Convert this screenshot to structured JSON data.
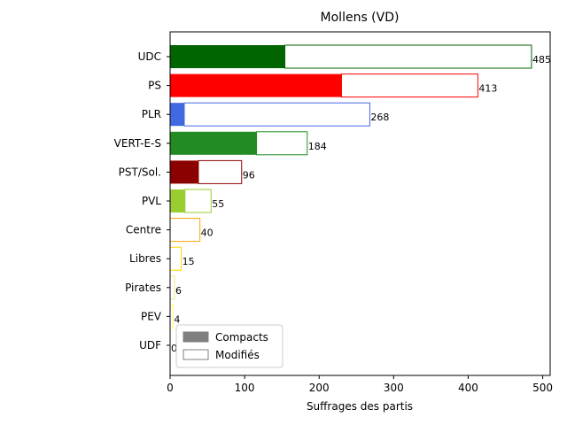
{
  "chart_data": {
    "type": "bar",
    "orientation": "horizontal",
    "title": "Mollens (VD)",
    "xlabel": "Suffrages des partis",
    "ylabel": "",
    "xlim": [
      0,
      510
    ],
    "xticks": [
      0,
      100,
      200,
      300,
      400,
      500
    ],
    "grid": false,
    "legend_position": "lower-left",
    "legend": [
      {
        "label": "Compacts",
        "style": "filled",
        "color": "#808080"
      },
      {
        "label": "Modifiés",
        "style": "outline",
        "color": "#808080"
      }
    ],
    "categories": [
      "UDC",
      "PS",
      "PLR",
      "VERT-E-S",
      "PST/Sol.",
      "PVL",
      "Centre",
      "Libres",
      "Pirates",
      "PEV",
      "UDF"
    ],
    "colors": [
      "#006400",
      "#ff0000",
      "#4169e1",
      "#228b22",
      "#8b0000",
      "#9acd32",
      "#ffa500",
      "#ffd700",
      "#f0e68c",
      "#ffff66",
      "#cccc00"
    ],
    "series": [
      {
        "name": "Compacts",
        "style": "filled",
        "values": [
          154,
          230,
          19,
          116,
          38,
          20,
          0,
          0,
          0,
          0,
          0
        ]
      },
      {
        "name": "Modifiés",
        "style": "outline",
        "values": [
          331,
          183,
          249,
          68,
          58,
          35,
          40,
          15,
          6,
          4,
          0
        ]
      }
    ],
    "totals": [
      485,
      413,
      268,
      184,
      96,
      55,
      40,
      15,
      6,
      4,
      0
    ]
  }
}
